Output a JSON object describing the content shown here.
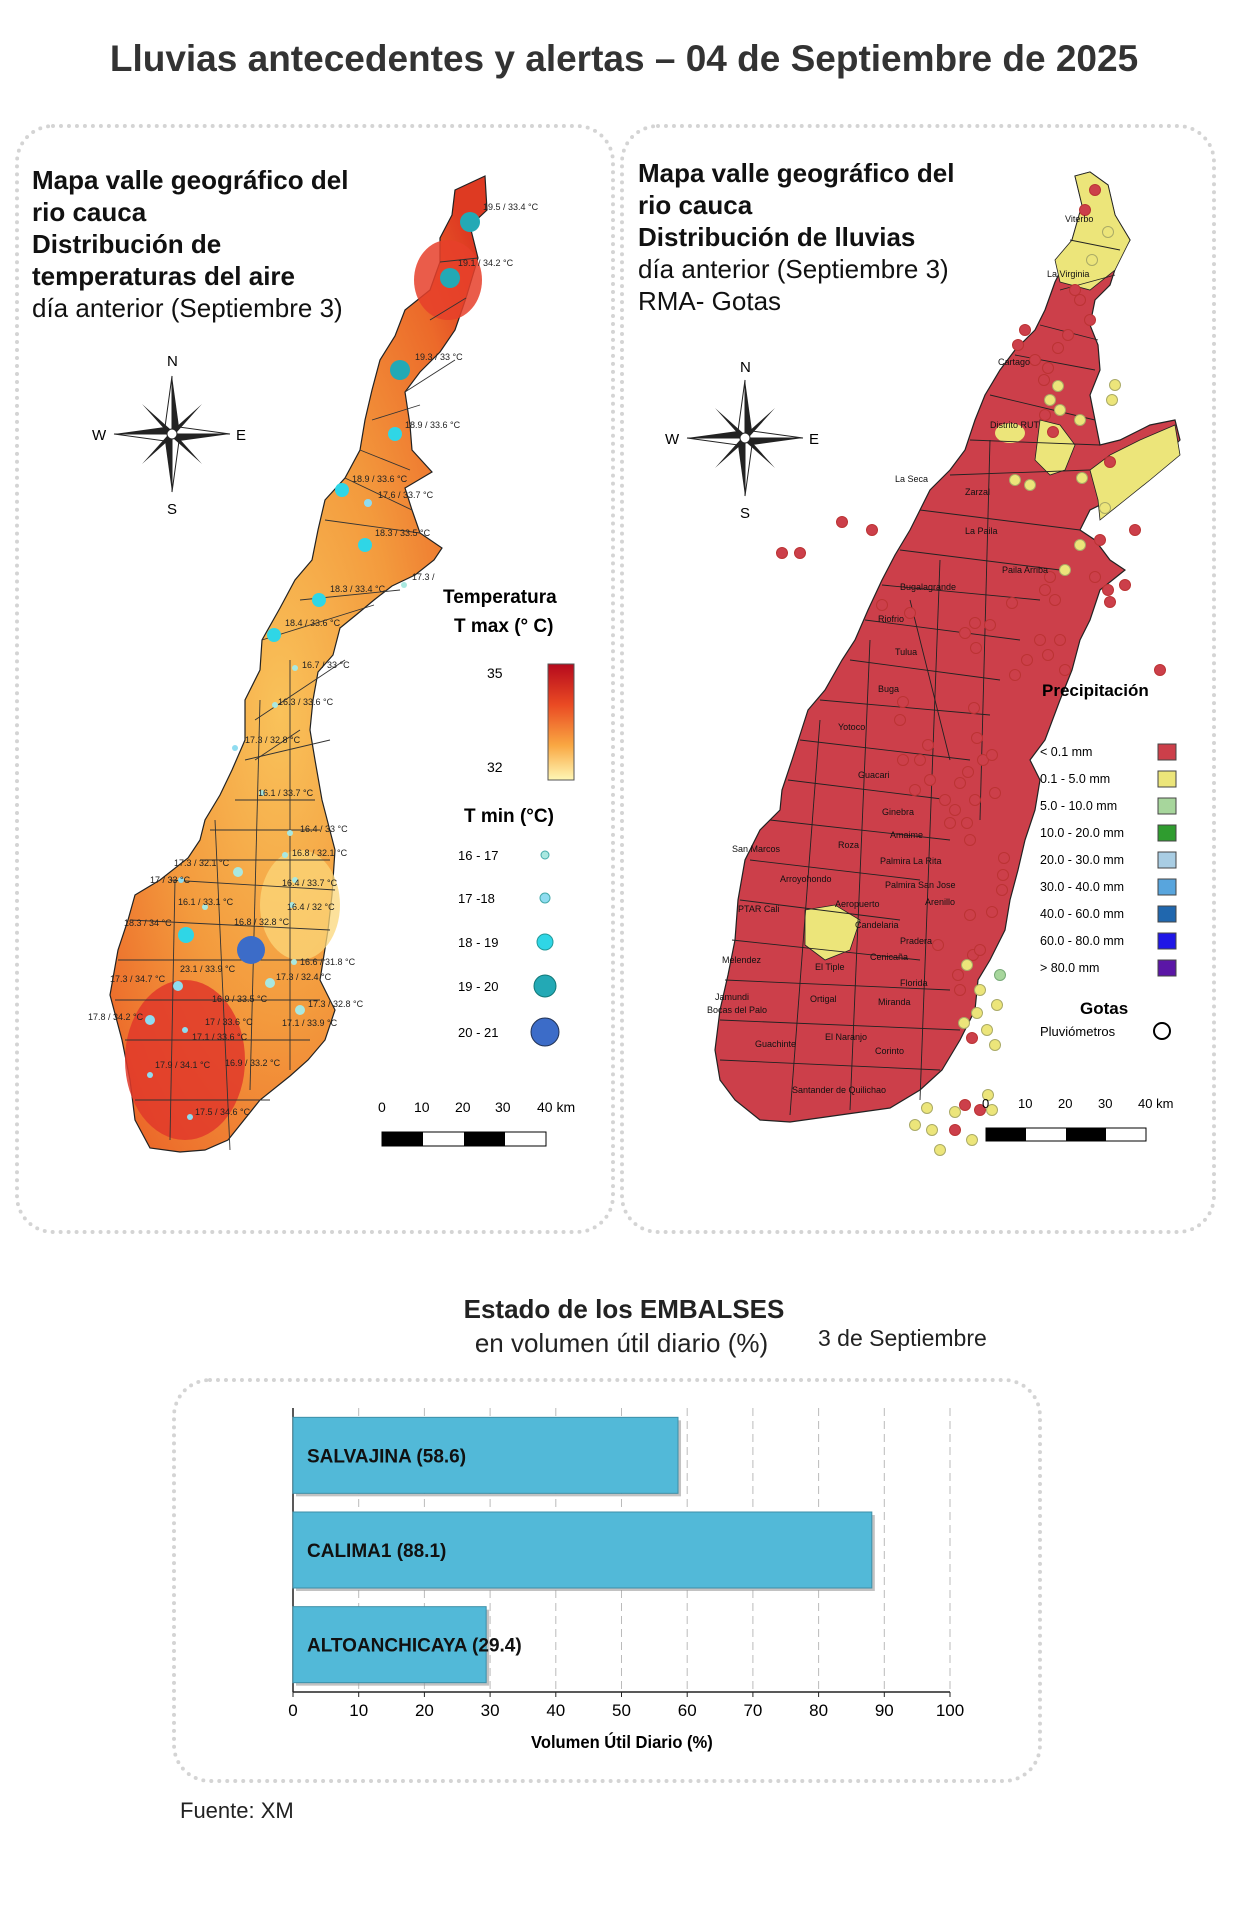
{
  "title": "Lluvias antecedentes y alertas – 04 de Septiembre de 2025",
  "left_map": {
    "title_lines": [
      "Mapa valle geográfico del",
      "rio cauca",
      "Distribución de",
      "temperaturas del aire"
    ],
    "subtitle": "día anterior (Septiembre 3)",
    "compass": {
      "n": "N",
      "s": "S",
      "e": "E",
      "w": "W"
    },
    "tmax_legend": {
      "title_line1": "Temperatura",
      "title_line2": "T max (° C)",
      "max": "35",
      "min": "32"
    },
    "tmin_legend": {
      "title": "T min (°C)",
      "items": [
        {
          "label": "16 - 17",
          "color": "#a9e8e0"
        },
        {
          "label": "17 -18",
          "color": "#8fdcf0"
        },
        {
          "label": "18 - 19",
          "color": "#2fd6e6"
        },
        {
          "label": "19 - 20",
          "color": "#23a9b5"
        },
        {
          "label": "20 - 21",
          "color": "#3c6cc8"
        }
      ]
    },
    "scale": {
      "ticks": [
        "0",
        "10",
        "20",
        "30",
        "40 km"
      ]
    },
    "stations": [
      "19.5 / 33.4 °C",
      "19.1 / 34.2 °C",
      "19.3 / 33 °C",
      "18.9 / 33.6 °C",
      "18.9 / 33.6 °C",
      "17.6 / 33.7 °C",
      "18.3 / 33.5 °C",
      "17.3 /",
      "18.3 / 33.4 °C",
      "18.4 / 33.6 °C",
      "16.7 / 33 °C",
      "16.3 / 33.6 °C",
      "17.3 / 32.8 °C",
      "16.1 / 33.7 °C",
      "16.4 / 33 °C",
      "16.8 / 32.1 °C",
      "17.3 / 32.1 °C",
      "17 / 33 °C",
      "16.1 / 33.1 °C",
      "16.4 / 33.7 °C",
      "16.4 / 32 °C",
      "18.3 / 34 °C",
      "16.8 / 32.8 °C",
      "16.6 / 31.8 °C",
      "17.3 / 34.7 °C",
      "23.1 / 33.9 °C",
      "17.3 / 32.4 °C",
      "16.9 / 33.5 °C",
      "17.3 / 32.8 °C",
      "17.8 / 34.2 °C",
      "17 / 33.6 °C",
      "17.1 / 33.6 °C",
      "17.1 / 33.9 °C",
      "17.9 / 34.1 °C",
      "16.9 / 33.2 °C",
      "17.5 / 34.6 °C"
    ]
  },
  "right_map": {
    "title_lines": [
      "Mapa valle geográfico del",
      "rio cauca"
    ],
    "title_bold": "Distribución de lluvias",
    "subtitle": "día anterior (Septiembre 3)",
    "subtitle2": "RMA- Gotas",
    "compass": {
      "n": "N",
      "s": "S",
      "e": "E",
      "w": "W"
    },
    "places": [
      "Viterbo",
      "La Virginia",
      "Cartago",
      "Distrito RUT",
      "La Seca",
      "Zarzal",
      "La Paila",
      "Paila Arriba",
      "Bugalagrande",
      "Riofrio",
      "Tulua",
      "Buga",
      "Yotoco",
      "Guacari",
      "San Marcos",
      "Roza",
      "Ginebra",
      "Amaime",
      "Palmira La Rita",
      "Arroyohondo",
      "Palmira San Jose",
      "Aeropuerto",
      "Arenillo",
      "PTAR Cali",
      "Candelaria",
      "Pradera",
      "El Tiple",
      "Cenicaña",
      "Melendez",
      "Florida",
      "Ortigal",
      "Jamundi",
      "Bocas del Palo",
      "Miranda",
      "El Naranjo",
      "Guachinte",
      "Corinto",
      "Santander de Quilichao"
    ],
    "precip_legend": {
      "title": "Precipitación",
      "items": [
        {
          "label": "< 0.1 mm",
          "color": "#cc3f4a"
        },
        {
          "label": "0.1 - 5.0 mm",
          "color": "#ece57a"
        },
        {
          "label": "5.0 - 10.0 mm",
          "color": "#a7d69c"
        },
        {
          "label": "10.0 - 20.0 mm",
          "color": "#2f9c2f"
        },
        {
          "label": "20.0 - 30.0 mm",
          "color": "#a9cde3"
        },
        {
          "label": "30.0 - 40.0 mm",
          "color": "#58a5dd"
        },
        {
          "label": "40.0 - 60.0 mm",
          "color": "#2067ae"
        },
        {
          "label": "60.0 - 80.0 mm",
          "color": "#1f16e6"
        },
        {
          "label": "> 80.0 mm",
          "color": "#5b16a6"
        }
      ]
    },
    "gotas_legend": {
      "title": "Gotas",
      "label": "Pluviómetros"
    },
    "scale": {
      "ticks": [
        "0",
        "10",
        "20",
        "30",
        "40 km"
      ]
    }
  },
  "reservoirs": {
    "title_bold": "Estado de los EMBALSES",
    "title_normal": "en volumen útil diario (%)",
    "date": "3 de Septiembre",
    "bar_color": "#52b9d8",
    "chart_data": {
      "type": "bar",
      "orientation": "horizontal",
      "categories": [
        "SALVAJINA",
        "CALIMA1",
        "ALTOANCHICAYA"
      ],
      "values": [
        58.6,
        88.1,
        29.4
      ],
      "bar_labels": [
        "SALVAJINA (58.6)",
        "CALIMA1 (88.1)",
        "ALTOANCHICAYA (29.4)"
      ],
      "xlabel": "Volumen Útil Diario (%)",
      "xlim": [
        0,
        100
      ],
      "xticks": [
        "0",
        "10",
        "20",
        "30",
        "40",
        "50",
        "60",
        "70",
        "80",
        "90",
        "100"
      ],
      "grid": "vertical dashed"
    }
  },
  "source": "Fuente: XM"
}
